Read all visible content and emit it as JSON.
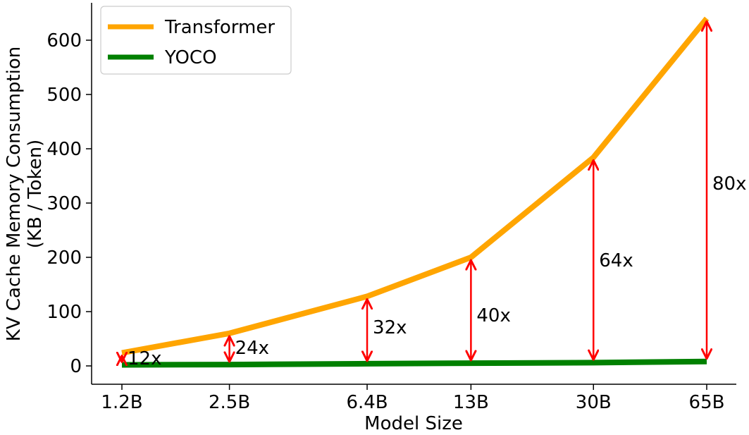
{
  "chart_data": {
    "type": "line",
    "xlabel": "Model Size",
    "ylabel_lines": [
      "KV Cache Memory Consumption",
      "(KB / Token)"
    ],
    "categories": [
      "1.2B",
      "2.5B",
      "6.4B",
      "13B",
      "30B",
      "65B"
    ],
    "x_positions": [
      1.2,
      2.5,
      6.4,
      13,
      30,
      65
    ],
    "x_scale": "log",
    "yticks": [
      0,
      100,
      200,
      300,
      400,
      500,
      600
    ],
    "ylim": [
      -30,
      660
    ],
    "grid": false,
    "legend_position": "top-left",
    "series": [
      {
        "name": "Transformer",
        "color": "#ffa500",
        "values": [
          24,
          60,
          128,
          200,
          384,
          640
        ]
      },
      {
        "name": "YOCO",
        "color": "#008000",
        "values": [
          2,
          2.5,
          4,
          5,
          6,
          8
        ]
      }
    ],
    "ratios": {
      "labels": [
        "12x",
        "24x",
        "32x",
        "40x",
        "64x",
        "80x"
      ],
      "color": "#ff0000"
    }
  }
}
